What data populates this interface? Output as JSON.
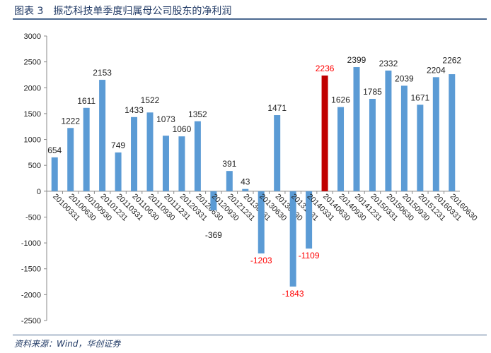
{
  "header": {
    "title": "图表 3　振芯科技单季度归属母公司股东的净利润"
  },
  "footer": {
    "source": "资料来源：Wind，华创证券"
  },
  "chart_data": {
    "type": "bar",
    "title": "振芯科技单季度归属母公司股东的净利润",
    "categories": [
      "20100331",
      "20100630",
      "20100930",
      "20101231",
      "20110331",
      "20110630",
      "20110930",
      "20111231",
      "20120331",
      "20120630",
      "20120930",
      "20121231",
      "20130331",
      "20130630",
      "20130930",
      "20131231",
      "20140331",
      "20140630",
      "20140930",
      "20141231",
      "20150331",
      "20150630",
      "20150930",
      "20151231",
      "20160331",
      "20160630"
    ],
    "values": [
      654,
      1222,
      1611,
      2153,
      749,
      1433,
      1522,
      1073,
      1060,
      1352,
      -369,
      391,
      43,
      -1203,
      1471,
      -1843,
      -1109,
      2236,
      1626,
      2399,
      1785,
      2332,
      2039,
      1671,
      2204,
      2262
    ],
    "highlight_index": 17,
    "colors": {
      "bar": "#5b9bd5",
      "highlight": "#c00000",
      "negative_label": "#ff0000",
      "highlight_label": "#ff0000",
      "label": "#222222"
    },
    "ylim": [
      -2500,
      3000
    ],
    "yticks": [
      -2500,
      -2000,
      -1500,
      -1000,
      -500,
      0,
      500,
      1000,
      1500,
      2000,
      2500,
      3000
    ],
    "grid": false,
    "xlabel": "",
    "ylabel": ""
  }
}
